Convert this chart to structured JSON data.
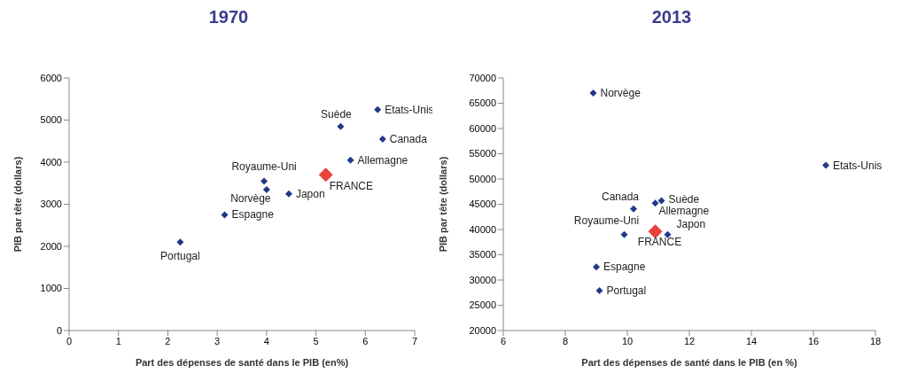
{
  "chart_data": [
    {
      "type": "scatter",
      "title": "1970",
      "xlabel": "Part des dépenses de santé dans le PIB (en%)",
      "ylabel": "PIB par tête (dollars)",
      "xlim": [
        0,
        7
      ],
      "xticks": [
        0,
        1,
        2,
        3,
        4,
        5,
        6,
        7
      ],
      "ylim": [
        0,
        6000
      ],
      "yticks": [
        0,
        1000,
        2000,
        3000,
        4000,
        5000,
        6000
      ],
      "marker": "diamond",
      "series": [
        {
          "color": "#1f3a8a",
          "x": [
            6.25,
            5.5,
            6.35,
            5.7,
            3.95,
            4.0,
            4.45,
            3.15,
            2.25
          ],
          "values": [
            5250,
            4850,
            4550,
            4050,
            3550,
            3350,
            3250,
            2750,
            2100
          ]
        },
        {
          "color": "#e8403a",
          "x": [
            5.2
          ],
          "values": [
            3700
          ]
        }
      ],
      "annotations": [
        {
          "text": "Etats-Unis",
          "x": 6.25,
          "y": 5250
        },
        {
          "text": "Suède",
          "x": 5.5,
          "y": 4850
        },
        {
          "text": "Canada",
          "x": 6.35,
          "y": 4550
        },
        {
          "text": "Allemagne",
          "x": 5.7,
          "y": 4050
        },
        {
          "text": "FRANCE",
          "x": 5.2,
          "y": 3700
        },
        {
          "text": "Royaume-Uni",
          "x": 3.95,
          "y": 3550
        },
        {
          "text": "Norvège",
          "x": 4.0,
          "y": 3350
        },
        {
          "text": "Japon",
          "x": 4.45,
          "y": 3250
        },
        {
          "text": "Espagne",
          "x": 3.15,
          "y": 2750
        },
        {
          "text": "Portugal",
          "x": 2.25,
          "y": 2100
        }
      ]
    },
    {
      "type": "scatter",
      "title": "2013",
      "xlabel": "Part des dépenses de santé dans le PIB (en %)",
      "ylabel": "PIB par tête (dollars)",
      "xlim": [
        6,
        18
      ],
      "xticks": [
        6,
        8,
        10,
        12,
        14,
        16,
        18
      ],
      "ylim": [
        20000,
        70000
      ],
      "yticks": [
        20000,
        25000,
        30000,
        35000,
        40000,
        45000,
        50000,
        55000,
        60000,
        65000,
        70000
      ],
      "marker": "diamond",
      "series": [
        {
          "color": "#1f3a8a",
          "x": [
            8.9,
            16.4,
            10.2,
            10.9,
            11.1,
            9.9,
            11.3,
            9.0,
            9.1
          ],
          "values": [
            67000,
            52700,
            44100,
            45200,
            45700,
            39000,
            39000,
            32600,
            27900
          ]
        },
        {
          "color": "#e8403a",
          "x": [
            10.9
          ],
          "values": [
            39600
          ]
        }
      ],
      "annotations": [
        {
          "text": "Norvège",
          "x": 8.9,
          "y": 67000
        },
        {
          "text": "Etats-Unis",
          "x": 16.4,
          "y": 52700
        },
        {
          "text": "Canada",
          "x": 10.2,
          "y": 44100
        },
        {
          "text": "Suède",
          "x": 11.1,
          "y": 45700
        },
        {
          "text": "Allemagne",
          "x": 10.9,
          "y": 45200
        },
        {
          "text": "Royaume-Uni",
          "x": 9.9,
          "y": 39000
        },
        {
          "text": "FRANCE",
          "x": 10.9,
          "y": 39600
        },
        {
          "text": "Japon",
          "x": 11.3,
          "y": 39000
        },
        {
          "text": "Espagne",
          "x": 9.0,
          "y": 32600
        },
        {
          "text": "Portugal",
          "x": 9.1,
          "y": 27900
        }
      ]
    }
  ]
}
